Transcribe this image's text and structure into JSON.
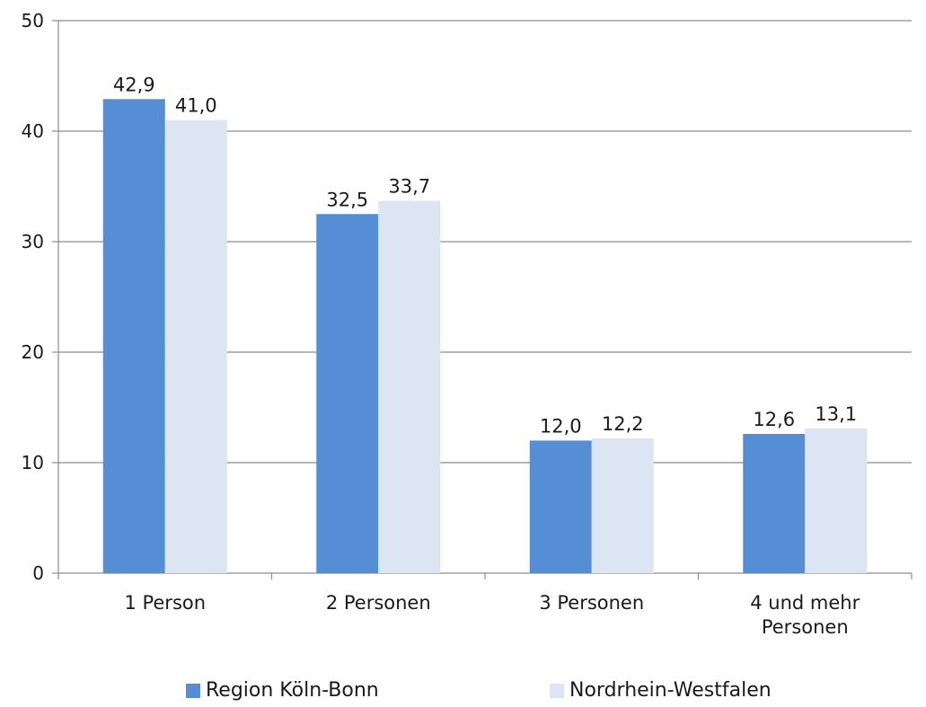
{
  "chart_data": {
    "type": "bar",
    "title": "",
    "xlabel": "",
    "ylabel": "",
    "ylim": [
      0,
      50
    ],
    "yticks": [
      "0",
      "10",
      "20",
      "30",
      "40",
      "50"
    ],
    "grid": true,
    "legend_position": "bottom",
    "categories": [
      [
        "1 Person"
      ],
      [
        "2 Personen"
      ],
      [
        "3 Personen"
      ],
      [
        "4 und mehr",
        "Personen"
      ]
    ],
    "series": [
      {
        "name": "Region Köln-Bonn",
        "color": "#558ed5",
        "values": [
          42.9,
          32.5,
          12.0,
          12.6
        ],
        "labels": [
          "42,9",
          "32,5",
          "12,0",
          "12,6"
        ]
      },
      {
        "name": "Nordrhein-Westfalen",
        "color": "#dce6f2",
        "values": [
          41.0,
          33.7,
          12.2,
          13.1
        ],
        "labels": [
          "41,0",
          "33,7",
          "12,2",
          "13,1"
        ]
      }
    ]
  }
}
